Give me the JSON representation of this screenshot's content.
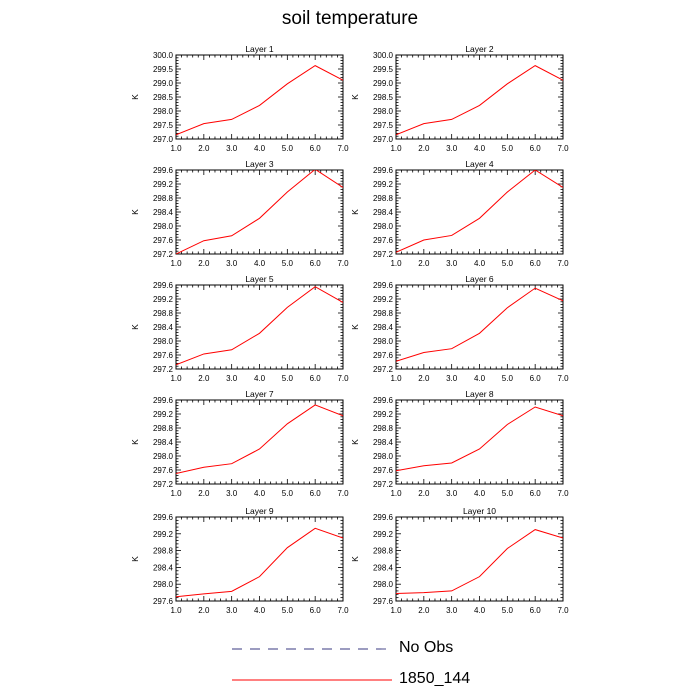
{
  "title": "soil temperature",
  "chart_data": {
    "type": "line",
    "layout": "5 rows x 2 columns of line panels",
    "xlim": [
      1.0,
      7.0
    ],
    "x_ticks": [
      "1.0",
      "2.0",
      "3.0",
      "4.0",
      "5.0",
      "6.0",
      "7.0"
    ],
    "x": [
      1,
      2,
      3,
      4,
      5,
      6,
      7
    ],
    "ylabel": "K",
    "line_color": "#ff0000",
    "grid": false,
    "panels": [
      {
        "title": "Layer 1",
        "ylim": [
          297.0,
          300.0
        ],
        "y_ticks": [
          "297.0",
          "297.5",
          "298.0",
          "298.5",
          "299.0",
          "299.5",
          "300.0"
        ],
        "values": [
          297.15,
          297.55,
          297.7,
          298.2,
          298.97,
          299.62,
          299.1
        ]
      },
      {
        "title": "Layer 2",
        "ylim": [
          297.0,
          300.0
        ],
        "y_ticks": [
          "297.0",
          "297.5",
          "298.0",
          "298.5",
          "299.0",
          "299.5",
          "300.0"
        ],
        "values": [
          297.15,
          297.55,
          297.7,
          298.2,
          298.97,
          299.62,
          299.1
        ]
      },
      {
        "title": "Layer 3",
        "ylim": [
          297.2,
          299.6
        ],
        "y_ticks": [
          "297.2",
          "297.6",
          "298.0",
          "298.4",
          "298.8",
          "299.2",
          "299.6"
        ],
        "values": [
          297.2,
          297.58,
          297.72,
          298.22,
          298.97,
          299.62,
          299.1
        ]
      },
      {
        "title": "Layer 4",
        "ylim": [
          297.2,
          299.6
        ],
        "y_ticks": [
          "297.2",
          "297.6",
          "298.0",
          "298.4",
          "298.8",
          "299.2",
          "299.6"
        ],
        "values": [
          297.25,
          297.6,
          297.73,
          298.22,
          298.97,
          299.6,
          299.1
        ]
      },
      {
        "title": "Layer 5",
        "ylim": [
          297.2,
          299.6
        ],
        "y_ticks": [
          "297.2",
          "297.6",
          "298.0",
          "298.4",
          "298.8",
          "299.2",
          "299.6"
        ],
        "values": [
          297.32,
          297.63,
          297.75,
          298.22,
          298.96,
          299.55,
          299.1
        ]
      },
      {
        "title": "Layer 6",
        "ylim": [
          297.2,
          299.6
        ],
        "y_ticks": [
          "297.2",
          "297.6",
          "298.0",
          "298.4",
          "298.8",
          "299.2",
          "299.6"
        ],
        "values": [
          297.42,
          297.67,
          297.78,
          298.22,
          298.95,
          299.51,
          299.15
        ]
      },
      {
        "title": "Layer 7",
        "ylim": [
          297.2,
          299.6
        ],
        "y_ticks": [
          "297.2",
          "297.6",
          "298.0",
          "298.4",
          "298.8",
          "299.2",
          "299.6"
        ],
        "values": [
          297.5,
          297.68,
          297.78,
          298.2,
          298.92,
          299.46,
          299.15
        ]
      },
      {
        "title": "Layer 8",
        "ylim": [
          297.2,
          299.6
        ],
        "y_ticks": [
          "297.2",
          "297.6",
          "298.0",
          "298.4",
          "298.8",
          "299.2",
          "299.6"
        ],
        "values": [
          297.58,
          297.72,
          297.8,
          298.2,
          298.9,
          299.4,
          299.15
        ]
      },
      {
        "title": "Layer 9",
        "ylim": [
          297.6,
          299.6
        ],
        "y_ticks": [
          "297.6",
          "298.0",
          "298.4",
          "298.8",
          "299.2",
          "299.6"
        ],
        "values": [
          297.7,
          297.77,
          297.83,
          298.18,
          298.87,
          299.33,
          299.1
        ]
      },
      {
        "title": "Layer 10",
        "ylim": [
          297.6,
          299.6
        ],
        "y_ticks": [
          "297.6",
          "298.0",
          "298.4",
          "298.8",
          "299.2",
          "299.6"
        ],
        "values": [
          297.78,
          297.8,
          297.84,
          298.18,
          298.85,
          299.3,
          299.1
        ]
      }
    ],
    "legend": [
      {
        "label": "No Obs",
        "style": "dashed",
        "color": "#3a3a80"
      },
      {
        "label": "1850_144",
        "style": "solid",
        "color": "#ff0000"
      }
    ]
  }
}
